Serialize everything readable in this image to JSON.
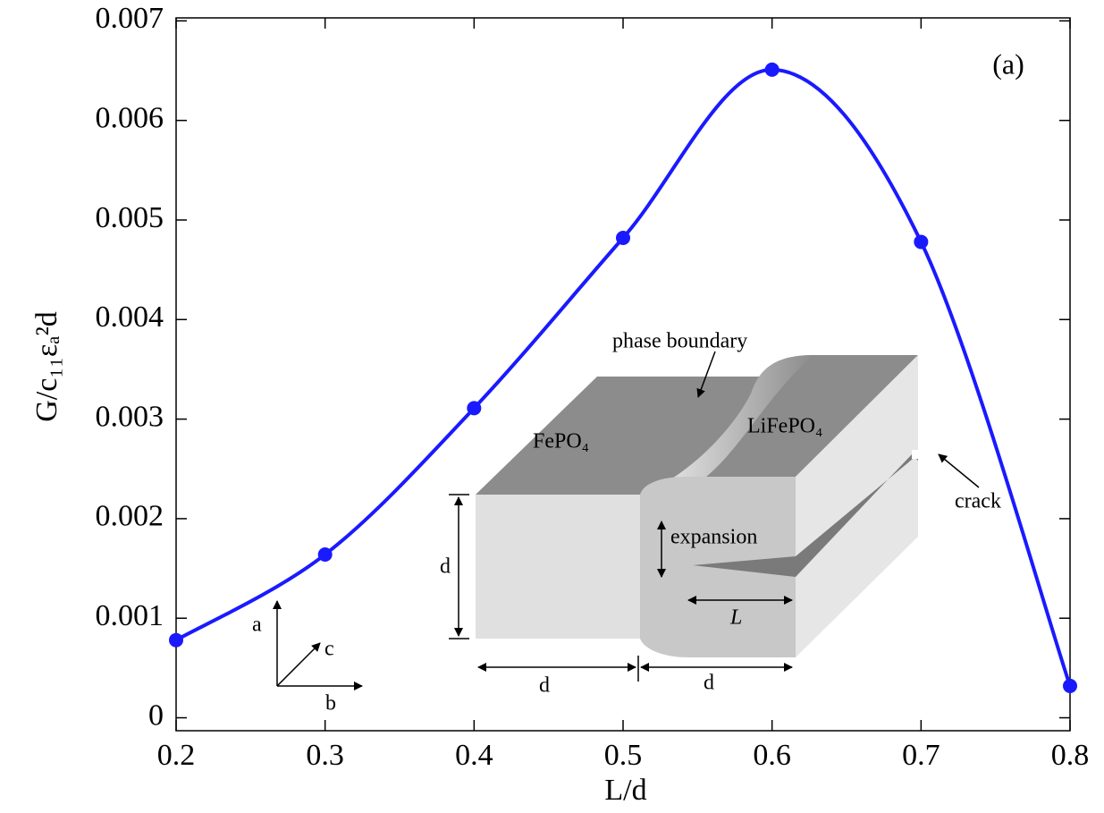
{
  "chart_data": {
    "type": "line",
    "x_label": "L/d",
    "y_label": "G/c₁₁εₐ²d",
    "annotation": "(a)",
    "x": [
      0.2,
      0.3,
      0.4,
      0.5,
      0.6,
      0.7,
      0.8
    ],
    "values": [
      0.00078,
      0.00164,
      0.00311,
      0.00482,
      0.00651,
      0.00478,
      0.00032
    ],
    "color": "#1a1aff",
    "xlim": [
      0.2,
      0.8
    ],
    "ylim": [
      -0.00013,
      0.00703
    ],
    "xticks": [
      0.2,
      0.3,
      0.4,
      0.5,
      0.6,
      0.7,
      0.8
    ],
    "yticks": [
      0,
      0.001,
      0.002,
      0.003,
      0.004,
      0.005,
      0.006,
      0.007
    ],
    "inset": {
      "phase_boundary": "phase boundary",
      "left_phase": "FePO₄",
      "right_phase": "LiFePO₄",
      "crack": "crack",
      "expansion": "expansion",
      "thickness": "d",
      "length_left": "d",
      "length_right": "d",
      "crack_length": "L",
      "axis_a": "a",
      "axis_b": "b",
      "axis_c": "c"
    }
  }
}
